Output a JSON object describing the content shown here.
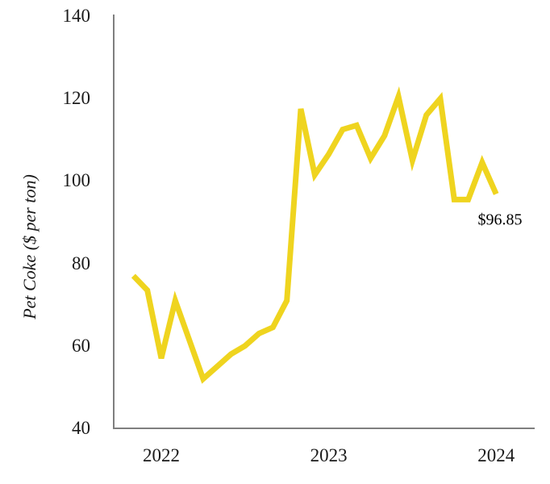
{
  "chart_data": {
    "type": "line",
    "title": "",
    "ylabel": "Pet Coke ($ per ton)",
    "xlabel": "",
    "ylim": [
      40,
      140
    ],
    "yticks": [
      40,
      60,
      80,
      100,
      120,
      140
    ],
    "xticks": [
      {
        "label": "2022",
        "x_index": 2
      },
      {
        "label": "2023",
        "x_index": 14
      },
      {
        "label": "2024",
        "x_index": 26
      }
    ],
    "x": [
      "Nov 2021",
      "Dec 2021",
      "Jan 2022",
      "Feb 2022",
      "Mar 2022",
      "Apr 2022",
      "May 2022",
      "Jun 2022",
      "Jul 2022",
      "Aug 2022",
      "Sep 2022",
      "Oct 2022",
      "Nov 2022",
      "Dec 2022",
      "Jan 2023",
      "Feb 2023",
      "Mar 2023",
      "Apr 2023",
      "May 2023",
      "Jun 2023",
      "Jul 2023",
      "Aug 2023",
      "Sep 2023",
      "Oct 2023",
      "Nov 2023",
      "Dec 2023",
      "Jan 2024"
    ],
    "series": [
      {
        "name": "Pet Coke ($ per ton)",
        "color": "#EFD41F",
        "values": [
          77,
          73.5,
          57,
          71,
          61.5,
          52,
          55,
          58,
          60,
          63,
          64.5,
          71,
          117.5,
          101.5,
          106.5,
          112.5,
          113.5,
          105.5,
          111,
          120.5,
          105,
          116,
          120,
          95.5,
          95.5,
          104.5,
          96.85
        ]
      }
    ],
    "annotation": {
      "text": "$96.85",
      "attached_to": "Jan 2024"
    },
    "grid": false,
    "legend": false,
    "axis_color": "#7f7f7f"
  }
}
